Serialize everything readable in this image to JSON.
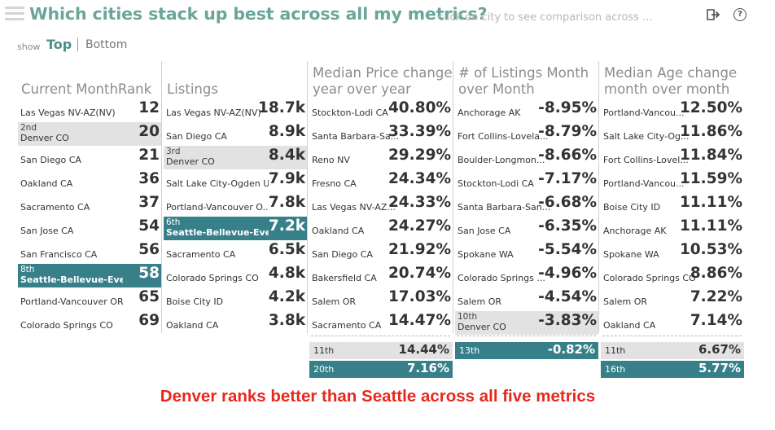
{
  "header": {
    "title": "Which cities stack up best across all my metrics?",
    "subtitle": "click on city to see comparison across ...",
    "show_label": "show",
    "tab_top": "Top",
    "tab_bottom": "Bottom"
  },
  "columns": [
    {
      "header": "Current MonthRank",
      "rows": [
        {
          "rank": "",
          "city": "Las Vegas  NV-AZ(NV)",
          "value": "12",
          "hl": ""
        },
        {
          "rank": "2nd",
          "city": "Denver  CO",
          "value": "20",
          "hl": "gray"
        },
        {
          "rank": "",
          "city": "San Diego  CA",
          "value": "21",
          "hl": ""
        },
        {
          "rank": "",
          "city": "Oakland  CA",
          "value": "36",
          "hl": ""
        },
        {
          "rank": "",
          "city": "Sacramento  CA",
          "value": "37",
          "hl": ""
        },
        {
          "rank": "",
          "city": "San Jose  CA",
          "value": "54",
          "hl": ""
        },
        {
          "rank": "",
          "city": "San Francisco  CA",
          "value": "56",
          "hl": ""
        },
        {
          "rank": "8th",
          "city": "Seattle-Bellevue-Everett  WA",
          "value": "58",
          "hl": "teal"
        },
        {
          "rank": "",
          "city": "Portland-Vancouver  OR-W...",
          "value": "65",
          "hl": ""
        },
        {
          "rank": "",
          "city": "Colorado Springs  CO",
          "value": "69",
          "hl": ""
        }
      ],
      "footer": []
    },
    {
      "header": "Listings",
      "rows": [
        {
          "rank": "",
          "city": "Las Vegas  NV-AZ(NV)",
          "value": "18.7k",
          "hl": ""
        },
        {
          "rank": "",
          "city": "San Diego  CA",
          "value": "8.9k",
          "hl": ""
        },
        {
          "rank": "3rd",
          "city": "Denver  CO",
          "value": "8.4k",
          "hl": "gray"
        },
        {
          "rank": "",
          "city": "Salt Lake City-Ogden  UT",
          "value": "7.9k",
          "hl": ""
        },
        {
          "rank": "",
          "city": "Portland-Vancouver  O...",
          "value": "7.8k",
          "hl": ""
        },
        {
          "rank": "6th",
          "city": "Seattle-Bellevue-Everet...",
          "value": "7.2k",
          "hl": "teal"
        },
        {
          "rank": "",
          "city": "Sacramento  CA",
          "value": "6.5k",
          "hl": ""
        },
        {
          "rank": "",
          "city": "Colorado Springs  CO",
          "value": "4.8k",
          "hl": ""
        },
        {
          "rank": "",
          "city": "Boise City  ID",
          "value": "4.2k",
          "hl": ""
        },
        {
          "rank": "",
          "city": "Oakland  CA",
          "value": "3.8k",
          "hl": ""
        }
      ],
      "footer": []
    },
    {
      "header": "Median Price change year over year",
      "rows": [
        {
          "rank": "",
          "city": "Stockton-Lodi  CA",
          "value": "40.80%",
          "hl": ""
        },
        {
          "rank": "",
          "city": "Santa Barbara-Sa...",
          "value": "33.39%",
          "hl": ""
        },
        {
          "rank": "",
          "city": "Reno  NV",
          "value": "29.29%",
          "hl": ""
        },
        {
          "rank": "",
          "city": "Fresno  CA",
          "value": "24.34%",
          "hl": ""
        },
        {
          "rank": "",
          "city": "Las Vegas  NV-AZ...",
          "value": "24.33%",
          "hl": ""
        },
        {
          "rank": "",
          "city": "Oakland  CA",
          "value": "24.27%",
          "hl": ""
        },
        {
          "rank": "",
          "city": "San Diego  CA",
          "value": "21.92%",
          "hl": ""
        },
        {
          "rank": "",
          "city": "Bakersfield  CA",
          "value": "20.74%",
          "hl": ""
        },
        {
          "rank": "",
          "city": "Salem  OR",
          "value": "17.03%",
          "hl": ""
        },
        {
          "rank": "",
          "city": "Sacramento  CA",
          "value": "14.47%",
          "hl": ""
        }
      ],
      "footer": [
        {
          "rank": "11th",
          "value": "14.44%",
          "style": "gray"
        },
        {
          "rank": "20th",
          "value": "7.16%",
          "style": "teal"
        }
      ]
    },
    {
      "header": "# of Listings Month over Month",
      "rows": [
        {
          "rank": "",
          "city": "Anchorage  AK",
          "value": "-8.95%",
          "hl": ""
        },
        {
          "rank": "",
          "city": "Fort Collins-Lovela...",
          "value": "-8.79%",
          "hl": ""
        },
        {
          "rank": "",
          "city": "Boulder-Longmon...",
          "value": "-8.66%",
          "hl": ""
        },
        {
          "rank": "",
          "city": "Stockton-Lodi  CA",
          "value": "-7.17%",
          "hl": ""
        },
        {
          "rank": "",
          "city": "Santa Barbara-San...",
          "value": "-6.68%",
          "hl": ""
        },
        {
          "rank": "",
          "city": "San Jose  CA",
          "value": "-6.35%",
          "hl": ""
        },
        {
          "rank": "",
          "city": "Spokane  WA",
          "value": "-5.54%",
          "hl": ""
        },
        {
          "rank": "",
          "city": "Colorado Springs  ...",
          "value": "-4.96%",
          "hl": ""
        },
        {
          "rank": "",
          "city": "Salem  OR",
          "value": "-4.54%",
          "hl": ""
        },
        {
          "rank": "10th",
          "city": "Denver  CO",
          "value": "-3.83%",
          "hl": "gray"
        }
      ],
      "footer": [
        {
          "rank": "13th",
          "value": "-0.82%",
          "style": "teal"
        }
      ]
    },
    {
      "header": "Median Age change month over month",
      "rows": [
        {
          "rank": "",
          "city": "Portland-Vancou...",
          "value": "12.50%",
          "hl": ""
        },
        {
          "rank": "",
          "city": "Salt Lake City-Og...",
          "value": "11.86%",
          "hl": ""
        },
        {
          "rank": "",
          "city": "Fort Collins-Lovel...",
          "value": "11.84%",
          "hl": ""
        },
        {
          "rank": "",
          "city": "Portland-Vancou...",
          "value": "11.59%",
          "hl": ""
        },
        {
          "rank": "",
          "city": "Boise City  ID",
          "value": "11.11%",
          "hl": ""
        },
        {
          "rank": "",
          "city": "Anchorage  AK",
          "value": "11.11%",
          "hl": ""
        },
        {
          "rank": "",
          "city": "Spokane  WA",
          "value": "10.53%",
          "hl": ""
        },
        {
          "rank": "",
          "city": "Colorado Springs  CO",
          "value": "8.86%",
          "hl": ""
        },
        {
          "rank": "",
          "city": "Salem  OR",
          "value": "7.22%",
          "hl": ""
        },
        {
          "rank": "",
          "city": "Oakland  CA",
          "value": "7.14%",
          "hl": ""
        }
      ],
      "footer": [
        {
          "rank": "11th",
          "value": "6.67%",
          "style": "gray"
        },
        {
          "rank": "16th",
          "value": "5.77%",
          "style": "teal"
        }
      ]
    }
  ],
  "annotation": "Denver ranks better than Seattle across all five metrics",
  "colors": {
    "title": "#6aa59a",
    "highlight_teal": "#37808a",
    "highlight_gray": "#e2e2e2",
    "annotation": "#e8281c"
  },
  "icons": {
    "menu": "hamburger-icon",
    "exit": "exit-icon",
    "help": "help-icon"
  }
}
